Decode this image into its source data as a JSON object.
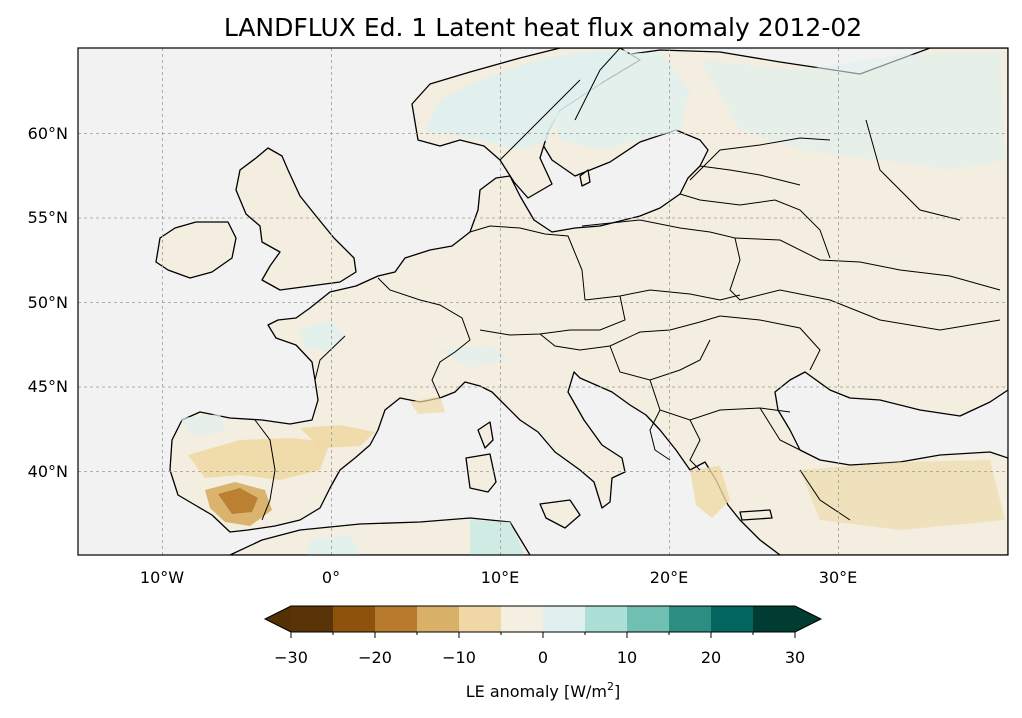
{
  "figure": {
    "title": "LANDFLUX Ed. 1 Latent heat flux anomaly 2012-02"
  },
  "map": {
    "projection": "PlateCarree",
    "extent_lon": [
      -15,
      40
    ],
    "extent_lat": [
      35,
      65
    ],
    "gridlines": true,
    "coastlines": true,
    "borders": true,
    "ocean_color": "#f2f2f2",
    "x_ticks": [
      {
        "lon": -10,
        "label": "10°W"
      },
      {
        "lon": 0,
        "label": "0°"
      },
      {
        "lon": 10,
        "label": "10°E"
      },
      {
        "lon": 20,
        "label": "20°E"
      },
      {
        "lon": 30,
        "label": "30°E"
      }
    ],
    "y_ticks": [
      {
        "lat": 40,
        "label": "40°N"
      },
      {
        "lat": 45,
        "label": "45°N"
      },
      {
        "lat": 50,
        "label": "50°N"
      },
      {
        "lat": 55,
        "label": "55°N"
      },
      {
        "lat": 60,
        "label": "60°N"
      }
    ]
  },
  "colorbar": {
    "label": "LE anomaly [W/m²]",
    "label_main": "LE anomaly [W/m",
    "label_sup": "2",
    "label_end": "]",
    "levels": [
      -30,
      -25,
      -20,
      -15,
      -10,
      -5,
      0,
      5,
      10,
      15,
      20,
      25,
      30
    ],
    "tick_labels": [
      {
        "value": -30,
        "label": "−30"
      },
      {
        "value": -20,
        "label": "−20"
      },
      {
        "value": -10,
        "label": "−10"
      },
      {
        "value": 0,
        "label": "0"
      },
      {
        "value": 10,
        "label": "10"
      },
      {
        "value": 20,
        "label": "20"
      },
      {
        "value": 30,
        "label": "30"
      }
    ],
    "colors": [
      "#543005",
      "#8c510a",
      "#bf812d",
      "#dfc27d",
      "#f6e8c3",
      "#f5f5f5",
      "#c7eae5",
      "#80cdc1",
      "#35978f",
      "#01665e",
      "#003c30"
    ],
    "bin_colors": [
      "#583407",
      "#8f520c",
      "#b87a2c",
      "#d8b068",
      "#efd8a5",
      "#f4efe0",
      "#e0f0ee",
      "#acdfd6",
      "#6fc0b2",
      "#2c8d82",
      "#03665e",
      "#003c31"
    ],
    "extend": "both",
    "under_color": "#543005",
    "over_color": "#003c30"
  },
  "chart_data": {
    "type": "heatmap",
    "variable": "Latent heat flux anomaly",
    "units": "W/m²",
    "dataset": "LANDFLUX Ed. 1",
    "period": "2012-02",
    "x_range": [
      -15,
      40
    ],
    "y_range": [
      35,
      65
    ],
    "colorbar_range": [
      -30,
      30
    ]
  }
}
